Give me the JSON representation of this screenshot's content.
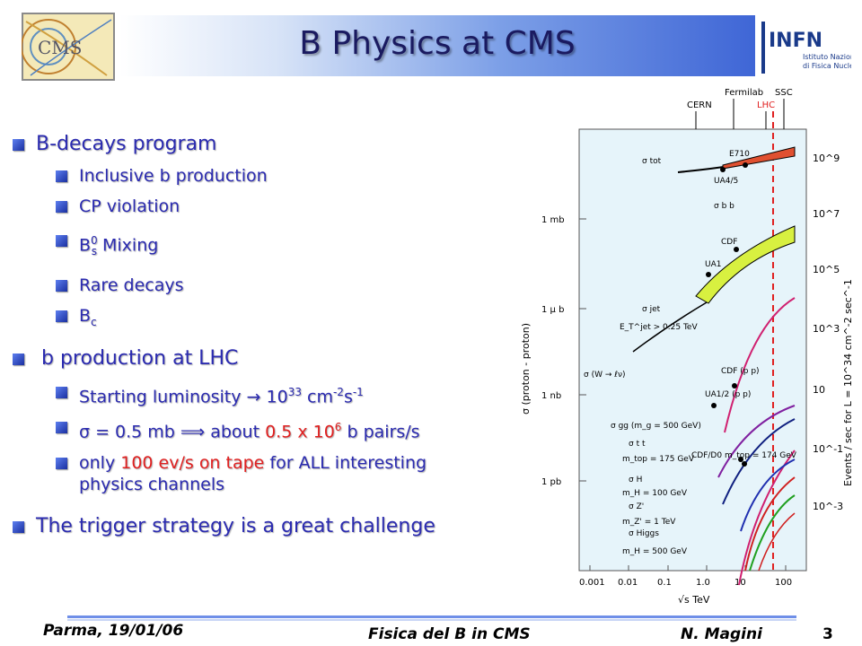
{
  "header": {
    "title": "B Physics at CMS",
    "logo_left_text": "CMS",
    "logo_right_text": "INFN",
    "logo_right_sub1": "Istituto Nazionale",
    "logo_right_sub2": "di Fisica Nucleare"
  },
  "bullets": {
    "b1_label": "B-decays program",
    "b1_items": [
      "Inclusive b production",
      "CP violation",
      "Mixing",
      "Rare decays",
      "B"
    ],
    "mixing_base": "B",
    "mixing_sup": "0",
    "mixing_sub": "s",
    "bc_sub": "c",
    "b2_label": "b production at LHC",
    "lum_prefix": "Starting luminosity",
    "lum_arrow": "→",
    "lum_value": "10",
    "lum_exp": "33",
    "lum_unit_cm": " cm",
    "lum_unit_cm_exp": "-2",
    "lum_unit_s": "s",
    "lum_unit_s_exp": "-1",
    "sigma_sym": "σ",
    "sigma_eq": " = 0.5 mb ",
    "implies": "⟹",
    "about": " about ",
    "pairs_value": "0.5 x 10",
    "pairs_exp": "6",
    "pairs_unit": " b pairs/s",
    "only": "only ",
    "tape": "100 ev/s on tape",
    "all_interesting": " for ALL interesting",
    "physics_channels": "physics channels",
    "b3_label": "The trigger strategy is a great challenge"
  },
  "chart_data": {
    "type": "line",
    "xlabel": "√s TeV",
    "x_ticks": [
      "0.001",
      "0.01",
      "0.1",
      "1.0",
      "10",
      "100"
    ],
    "y_left_label": "σ (proton - proton)",
    "y_left_ticks": [
      "1 mb",
      "1 μ b",
      "1 nb",
      "1 pb"
    ],
    "y_right_label": "Events / sec for L = 10^34 cm^-2 sec^-1",
    "y_right_ticks": [
      "10^9",
      "10^7",
      "10^5",
      "10^3",
      "10",
      "10^-1",
      "10^-3"
    ],
    "top_labels": [
      "CERN",
      "Fermilab",
      "SSC",
      "LHC"
    ],
    "annotations": [
      "σ tot",
      "E710",
      "UA4/5",
      "σ b b",
      "CDF",
      "UA1",
      "σ jet",
      "E_T^jet > 0.25 TeV",
      "σ (W → ℓν)",
      "CDF (p p)",
      "UA1/2 (p p)",
      "σ gg (m_g = 500 GeV)",
      "σ t t",
      "m_top = 175 GeV",
      "CDF/D0 m_top = 174 GeV",
      "σ H",
      "m_H = 100 GeV",
      "σ Z'",
      "m_Z' = 1 TeV",
      "σ Higgs",
      "m_H = 500 GeV"
    ],
    "curves": {
      "sigma_tot": {
        "x": [
          0.7,
          1,
          2,
          5,
          14,
          50,
          100
        ],
        "y": [
          70,
          75,
          80,
          90,
          100,
          115,
          125
        ]
      },
      "sigma_bb": {
        "x": [
          0.3,
          1,
          3,
          14,
          100
        ],
        "y": [
          0.003,
          0.03,
          0.1,
          0.5,
          1.5
        ]
      },
      "sigma_w": {
        "x": [
          0.4,
          1,
          3,
          14,
          100
        ],
        "y": [
          1e-06,
          1e-05,
          3e-05,
          0.00015,
          0.0003
        ]
      }
    }
  },
  "footer": {
    "place_date": "Parma, 19/01/06",
    "center": "Fisica del B in CMS",
    "author": "N. Magini",
    "page": "3"
  }
}
